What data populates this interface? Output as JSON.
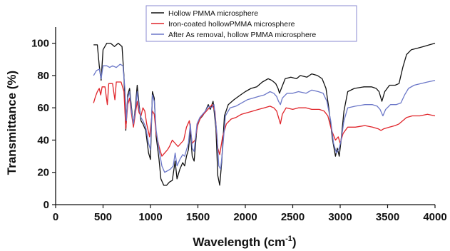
{
  "chart_data": {
    "type": "line",
    "title": "",
    "xlabel": "Wavelength (cm",
    "xlabel_sup": "-1",
    "xlabel_close": ")",
    "ylabel": "Transmittance (%)",
    "xlim": [
      0,
      4000
    ],
    "ylim": [
      0,
      110
    ],
    "xticks": [
      0,
      500,
      1000,
      1500,
      2000,
      2500,
      3000,
      3500,
      4000
    ],
    "yticks": [
      0,
      20,
      40,
      60,
      80,
      100
    ],
    "xtick_labels": [
      "0",
      "500",
      "1000",
      "1500",
      "2000",
      "2500",
      "3000",
      "3500",
      "4000"
    ],
    "ytick_labels": [
      "0",
      "20",
      "40",
      "60",
      "80",
      "100"
    ],
    "grid": false,
    "legend_position": "top-center",
    "series": [
      {
        "name": "Hollow PMMA microsphere",
        "color": "#111111",
        "points": [
          [
            400,
            99
          ],
          [
            440,
            99
          ],
          [
            460,
            86
          ],
          [
            480,
            77
          ],
          [
            500,
            96
          ],
          [
            540,
            100
          ],
          [
            580,
            100
          ],
          [
            620,
            98
          ],
          [
            660,
            100
          ],
          [
            700,
            98
          ],
          [
            720,
            80
          ],
          [
            740,
            46
          ],
          [
            760,
            68
          ],
          [
            780,
            72
          ],
          [
            800,
            60
          ],
          [
            820,
            49
          ],
          [
            840,
            60
          ],
          [
            860,
            74
          ],
          [
            880,
            62
          ],
          [
            900,
            52
          ],
          [
            920,
            50
          ],
          [
            950,
            46
          ],
          [
            980,
            32
          ],
          [
            1000,
            28
          ],
          [
            1020,
            70
          ],
          [
            1040,
            66
          ],
          [
            1060,
            42
          ],
          [
            1090,
            28
          ],
          [
            1110,
            16
          ],
          [
            1140,
            12
          ],
          [
            1170,
            12
          ],
          [
            1200,
            14
          ],
          [
            1230,
            15
          ],
          [
            1260,
            27
          ],
          [
            1280,
            16
          ],
          [
            1310,
            22
          ],
          [
            1340,
            26
          ],
          [
            1360,
            24
          ],
          [
            1380,
            30
          ],
          [
            1400,
            34
          ],
          [
            1420,
            46
          ],
          [
            1440,
            30
          ],
          [
            1460,
            27
          ],
          [
            1490,
            48
          ],
          [
            1520,
            53
          ],
          [
            1550,
            55
          ],
          [
            1580,
            58
          ],
          [
            1610,
            62
          ],
          [
            1630,
            59
          ],
          [
            1660,
            64
          ],
          [
            1690,
            47
          ],
          [
            1710,
            18
          ],
          [
            1730,
            12
          ],
          [
            1750,
            26
          ],
          [
            1780,
            55
          ],
          [
            1820,
            62
          ],
          [
            1880,
            65
          ],
          [
            1950,
            68
          ],
          [
            2000,
            70
          ],
          [
            2060,
            72
          ],
          [
            2120,
            73
          ],
          [
            2180,
            76
          ],
          [
            2240,
            78
          ],
          [
            2280,
            77
          ],
          [
            2320,
            75
          ],
          [
            2345,
            72
          ],
          [
            2360,
            69
          ],
          [
            2380,
            72
          ],
          [
            2420,
            78
          ],
          [
            2480,
            79
          ],
          [
            2540,
            78
          ],
          [
            2580,
            80
          ],
          [
            2650,
            79
          ],
          [
            2700,
            81
          ],
          [
            2760,
            80
          ],
          [
            2810,
            78
          ],
          [
            2850,
            72
          ],
          [
            2880,
            60
          ],
          [
            2920,
            40
          ],
          [
            2950,
            30
          ],
          [
            2970,
            35
          ],
          [
            2990,
            30
          ],
          [
            3010,
            40
          ],
          [
            3040,
            58
          ],
          [
            3080,
            70
          ],
          [
            3150,
            72
          ],
          [
            3250,
            73
          ],
          [
            3330,
            73
          ],
          [
            3380,
            72
          ],
          [
            3410,
            70
          ],
          [
            3440,
            64
          ],
          [
            3470,
            70
          ],
          [
            3520,
            74
          ],
          [
            3580,
            74
          ],
          [
            3620,
            75
          ],
          [
            3660,
            85
          ],
          [
            3700,
            93
          ],
          [
            3750,
            96
          ],
          [
            3820,
            97
          ],
          [
            3880,
            98
          ],
          [
            3940,
            99
          ],
          [
            4000,
            100
          ]
        ]
      },
      {
        "name": "Iron-coated hollowPMMA microsphere",
        "color": "#e0242a",
        "points": [
          [
            400,
            63
          ],
          [
            420,
            67
          ],
          [
            440,
            70
          ],
          [
            460,
            72
          ],
          [
            475,
            68
          ],
          [
            490,
            73
          ],
          [
            520,
            73
          ],
          [
            545,
            62
          ],
          [
            560,
            75
          ],
          [
            600,
            75
          ],
          [
            625,
            65
          ],
          [
            640,
            76
          ],
          [
            690,
            76
          ],
          [
            720,
            70
          ],
          [
            740,
            47
          ],
          [
            760,
            62
          ],
          [
            780,
            66
          ],
          [
            800,
            56
          ],
          [
            820,
            48
          ],
          [
            840,
            56
          ],
          [
            860,
            64
          ],
          [
            880,
            57
          ],
          [
            900,
            55
          ],
          [
            920,
            60
          ],
          [
            940,
            58
          ],
          [
            960,
            50
          ],
          [
            990,
            42
          ],
          [
            1020,
            58
          ],
          [
            1040,
            56
          ],
          [
            1060,
            44
          ],
          [
            1090,
            36
          ],
          [
            1120,
            30
          ],
          [
            1150,
            32
          ],
          [
            1180,
            34
          ],
          [
            1200,
            36
          ],
          [
            1230,
            40
          ],
          [
            1260,
            38
          ],
          [
            1290,
            36
          ],
          [
            1320,
            38
          ],
          [
            1350,
            40
          ],
          [
            1380,
            48
          ],
          [
            1410,
            52
          ],
          [
            1440,
            38
          ],
          [
            1470,
            40
          ],
          [
            1500,
            50
          ],
          [
            1530,
            54
          ],
          [
            1560,
            56
          ],
          [
            1590,
            58
          ],
          [
            1620,
            60
          ],
          [
            1650,
            62
          ],
          [
            1680,
            58
          ],
          [
            1710,
            35
          ],
          [
            1730,
            31
          ],
          [
            1760,
            42
          ],
          [
            1800,
            50
          ],
          [
            1850,
            53
          ],
          [
            1900,
            54
          ],
          [
            1960,
            56
          ],
          [
            2020,
            57
          ],
          [
            2080,
            58
          ],
          [
            2140,
            59
          ],
          [
            2200,
            60
          ],
          [
            2260,
            61
          ],
          [
            2300,
            60
          ],
          [
            2330,
            58
          ],
          [
            2350,
            54
          ],
          [
            2370,
            50
          ],
          [
            2390,
            56
          ],
          [
            2430,
            60
          ],
          [
            2500,
            59
          ],
          [
            2560,
            60
          ],
          [
            2640,
            60
          ],
          [
            2700,
            59
          ],
          [
            2780,
            59
          ],
          [
            2830,
            58
          ],
          [
            2870,
            55
          ],
          [
            2910,
            46
          ],
          [
            2950,
            40
          ],
          [
            2980,
            42
          ],
          [
            3000,
            38
          ],
          [
            3030,
            44
          ],
          [
            3080,
            48
          ],
          [
            3160,
            48
          ],
          [
            3260,
            49
          ],
          [
            3340,
            48
          ],
          [
            3400,
            47
          ],
          [
            3430,
            46
          ],
          [
            3460,
            47
          ],
          [
            3520,
            48
          ],
          [
            3580,
            49
          ],
          [
            3620,
            50
          ],
          [
            3660,
            52
          ],
          [
            3700,
            54
          ],
          [
            3760,
            55
          ],
          [
            3840,
            55
          ],
          [
            3920,
            56
          ],
          [
            4000,
            55
          ]
        ]
      },
      {
        "name": "After As removal, hollow PMMA microsphere",
        "color": "#6b77c8",
        "points": [
          [
            400,
            80
          ],
          [
            430,
            83
          ],
          [
            460,
            84
          ],
          [
            480,
            78
          ],
          [
            500,
            86
          ],
          [
            540,
            86
          ],
          [
            570,
            85
          ],
          [
            600,
            86
          ],
          [
            640,
            85
          ],
          [
            680,
            87
          ],
          [
            710,
            86
          ],
          [
            730,
            72
          ],
          [
            745,
            52
          ],
          [
            760,
            66
          ],
          [
            780,
            70
          ],
          [
            800,
            58
          ],
          [
            820,
            50
          ],
          [
            840,
            58
          ],
          [
            860,
            70
          ],
          [
            880,
            60
          ],
          [
            900,
            54
          ],
          [
            920,
            52
          ],
          [
            950,
            48
          ],
          [
            980,
            38
          ],
          [
            1000,
            34
          ],
          [
            1020,
            68
          ],
          [
            1040,
            64
          ],
          [
            1060,
            46
          ],
          [
            1090,
            34
          ],
          [
            1120,
            24
          ],
          [
            1150,
            20
          ],
          [
            1180,
            21
          ],
          [
            1210,
            22
          ],
          [
            1240,
            24
          ],
          [
            1260,
            32
          ],
          [
            1280,
            24
          ],
          [
            1310,
            28
          ],
          [
            1340,
            31
          ],
          [
            1360,
            30
          ],
          [
            1380,
            34
          ],
          [
            1400,
            38
          ],
          [
            1420,
            50
          ],
          [
            1440,
            35
          ],
          [
            1460,
            33
          ],
          [
            1490,
            50
          ],
          [
            1520,
            54
          ],
          [
            1550,
            56
          ],
          [
            1580,
            58
          ],
          [
            1610,
            61
          ],
          [
            1640,
            60
          ],
          [
            1670,
            62
          ],
          [
            1700,
            44
          ],
          [
            1720,
            24
          ],
          [
            1740,
            22
          ],
          [
            1760,
            34
          ],
          [
            1790,
            55
          ],
          [
            1840,
            60
          ],
          [
            1900,
            61
          ],
          [
            1960,
            63
          ],
          [
            2020,
            65
          ],
          [
            2080,
            66
          ],
          [
            2140,
            67
          ],
          [
            2200,
            68
          ],
          [
            2260,
            70
          ],
          [
            2300,
            69
          ],
          [
            2330,
            67
          ],
          [
            2350,
            64
          ],
          [
            2370,
            62
          ],
          [
            2390,
            66
          ],
          [
            2440,
            69
          ],
          [
            2500,
            69
          ],
          [
            2560,
            70
          ],
          [
            2640,
            69
          ],
          [
            2700,
            71
          ],
          [
            2770,
            70
          ],
          [
            2820,
            69
          ],
          [
            2860,
            64
          ],
          [
            2900,
            52
          ],
          [
            2930,
            38
          ],
          [
            2960,
            32
          ],
          [
            2990,
            35
          ],
          [
            3010,
            40
          ],
          [
            3040,
            52
          ],
          [
            3080,
            60
          ],
          [
            3160,
            61
          ],
          [
            3260,
            62
          ],
          [
            3340,
            62
          ],
          [
            3390,
            61
          ],
          [
            3420,
            59
          ],
          [
            3450,
            55
          ],
          [
            3480,
            59
          ],
          [
            3530,
            62
          ],
          [
            3590,
            62
          ],
          [
            3640,
            63
          ],
          [
            3680,
            68
          ],
          [
            3720,
            72
          ],
          [
            3780,
            74
          ],
          [
            3850,
            75
          ],
          [
            3920,
            76
          ],
          [
            4000,
            77
          ]
        ]
      }
    ]
  }
}
